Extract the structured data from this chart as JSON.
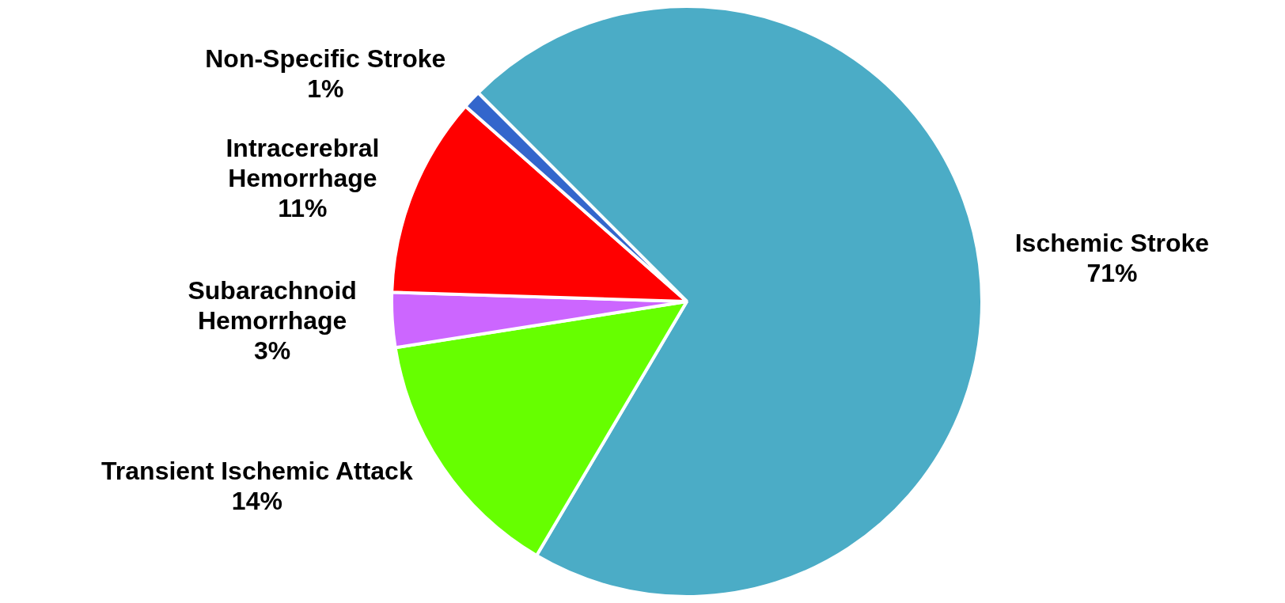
{
  "chart_data": {
    "type": "pie",
    "categories": [
      "Ischemic Stroke",
      "Transient Ischemic Attack",
      "Subarachnoid Hemorrhage",
      "Intracerebral Hemorrhage",
      "Non-Specific Stroke"
    ],
    "values": [
      71,
      14,
      3,
      11,
      1
    ],
    "colors": [
      "#4bacc6",
      "#66ff00",
      "#cc66ff",
      "#ff0000",
      "#3366cc"
    ],
    "value_labels": [
      "71%",
      "14%",
      "3%",
      "11%",
      "1%"
    ],
    "legend": false
  }
}
